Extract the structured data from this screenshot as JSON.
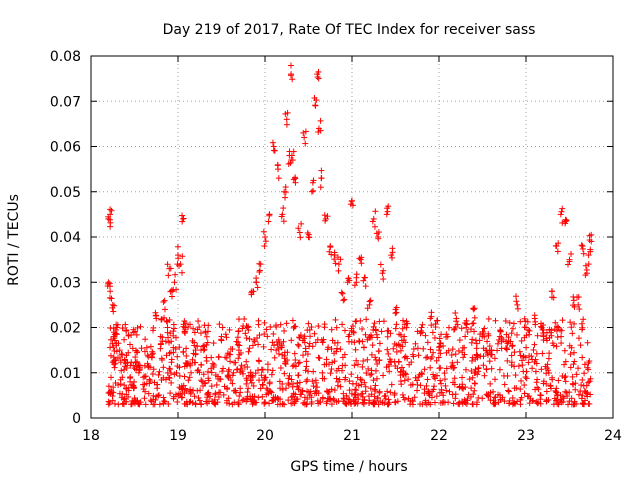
{
  "chart_data": {
    "type": "scatter",
    "title": "Day 219 of 2017, Rate Of TEC Index for receiver sass",
    "xlabel": "GPS time / hours",
    "ylabel": "ROTI / TECUs",
    "xlim": [
      18,
      24
    ],
    "ylim": [
      0,
      0.08
    ],
    "x_ticks": [
      18,
      19,
      20,
      21,
      22,
      23,
      24
    ],
    "y_ticks": [
      0,
      0.01,
      0.02,
      0.03,
      0.04,
      0.05,
      0.06,
      0.07,
      0.08
    ],
    "x_tick_labels": [
      "18",
      "19",
      "20",
      "21",
      "22",
      "23",
      "24"
    ],
    "y_tick_labels": [
      "0",
      "0.01",
      "0.02",
      "0.03",
      "0.04",
      "0.05",
      "0.06",
      "0.07",
      "0.08"
    ],
    "grid": true,
    "marker": "+",
    "marker_color": "#ff0000",
    "series": [
      {
        "name": "ROTI",
        "x": [
          18.2,
          18.2,
          18.22,
          18.22,
          18.25,
          18.26,
          18.28,
          18.3,
          18.33,
          18.36,
          18.4,
          18.45,
          18.5,
          18.55,
          18.6,
          18.65,
          18.7,
          18.75,
          18.8,
          18.85,
          18.88,
          18.9,
          18.93,
          18.96,
          19.0,
          19.03,
          19.06,
          19.08,
          19.1,
          19.15,
          19.2,
          19.3,
          19.4,
          19.5,
          19.6,
          19.7,
          19.8,
          19.85,
          19.9,
          19.95,
          20.0,
          20.05,
          20.1,
          20.15,
          20.2,
          20.22,
          20.25,
          20.28,
          20.3,
          20.32,
          20.35,
          20.4,
          20.45,
          20.5,
          20.55,
          20.58,
          20.6,
          20.62,
          20.65,
          20.7,
          20.75,
          20.8,
          20.85,
          20.9,
          20.95,
          21.0,
          21.05,
          21.1,
          21.15,
          21.2,
          21.25,
          21.3,
          21.35,
          21.4,
          21.45,
          21.5,
          21.6,
          21.7,
          21.8,
          21.9,
          22.0,
          22.1,
          22.2,
          22.3,
          22.4,
          22.5,
          22.6,
          22.7,
          22.8,
          22.9,
          23.0,
          23.1,
          23.2,
          23.3,
          23.35,
          23.4,
          23.45,
          23.5,
          23.55,
          23.6,
          23.65,
          23.7,
          23.72,
          23.75
        ],
        "y": [
          0.044,
          0.03,
          0.045,
          0.028,
          0.025,
          0.018,
          0.012,
          0.02,
          0.015,
          0.009,
          0.012,
          0.008,
          0.011,
          0.01,
          0.009,
          0.012,
          0.014,
          0.022,
          0.018,
          0.024,
          0.02,
          0.033,
          0.028,
          0.03,
          0.036,
          0.034,
          0.044,
          0.02,
          0.012,
          0.01,
          0.014,
          0.016,
          0.012,
          0.018,
          0.014,
          0.015,
          0.02,
          0.028,
          0.03,
          0.034,
          0.04,
          0.045,
          0.06,
          0.055,
          0.045,
          0.05,
          0.066,
          0.058,
          0.076,
          0.057,
          0.052,
          0.041,
          0.062,
          0.04,
          0.052,
          0.069,
          0.076,
          0.064,
          0.053,
          0.044,
          0.038,
          0.036,
          0.034,
          0.026,
          0.03,
          0.048,
          0.03,
          0.035,
          0.031,
          0.025,
          0.044,
          0.04,
          0.032,
          0.045,
          0.036,
          0.024,
          0.018,
          0.014,
          0.02,
          0.022,
          0.015,
          0.018,
          0.022,
          0.021,
          0.024,
          0.019,
          0.014,
          0.018,
          0.017,
          0.025,
          0.02,
          0.022,
          0.018,
          0.028,
          0.038,
          0.045,
          0.043,
          0.035,
          0.026,
          0.025,
          0.038,
          0.032,
          0.036,
          0.039
        ],
        "background_band": {
          "y_low": 0.003,
          "y_high": 0.022,
          "x_from": 18.2,
          "x_to": 23.75
        }
      }
    ]
  }
}
